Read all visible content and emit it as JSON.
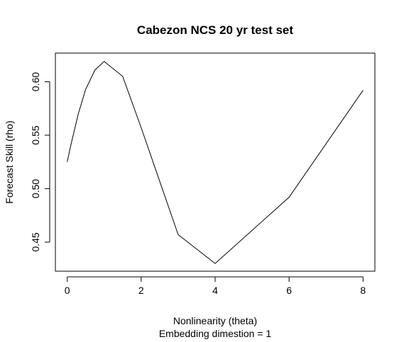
{
  "chart_data": {
    "type": "line",
    "title": "Cabezon NCS 20 yr test set",
    "xlabel": "Nonlinearity (theta)",
    "subtitle": "Embedding dimestion =  1",
    "ylabel": "Forecast Skill (rho)",
    "xlim": [
      -0.32,
      8.32
    ],
    "ylim": [
      0.4228,
      0.6268
    ],
    "x_ticks": [
      0,
      2,
      4,
      6,
      8
    ],
    "y_ticks": [
      0.45,
      0.5,
      0.55,
      0.6
    ],
    "x_tick_labels": [
      "0",
      "2",
      "4",
      "6",
      "8"
    ],
    "y_tick_labels": [
      "0.45",
      "0.50",
      "0.55",
      "0.60"
    ],
    "grid": false,
    "series": [
      {
        "x": [
          0,
          0.1,
          0.3,
          0.5,
          0.75,
          1,
          1.5,
          2,
          3,
          4,
          6,
          8
        ],
        "y": [
          0.525,
          0.541,
          0.57,
          0.593,
          0.611,
          0.619,
          0.605,
          0.557,
          0.457,
          0.43,
          0.492,
          0.592
        ]
      }
    ],
    "line_color": "#000000"
  }
}
